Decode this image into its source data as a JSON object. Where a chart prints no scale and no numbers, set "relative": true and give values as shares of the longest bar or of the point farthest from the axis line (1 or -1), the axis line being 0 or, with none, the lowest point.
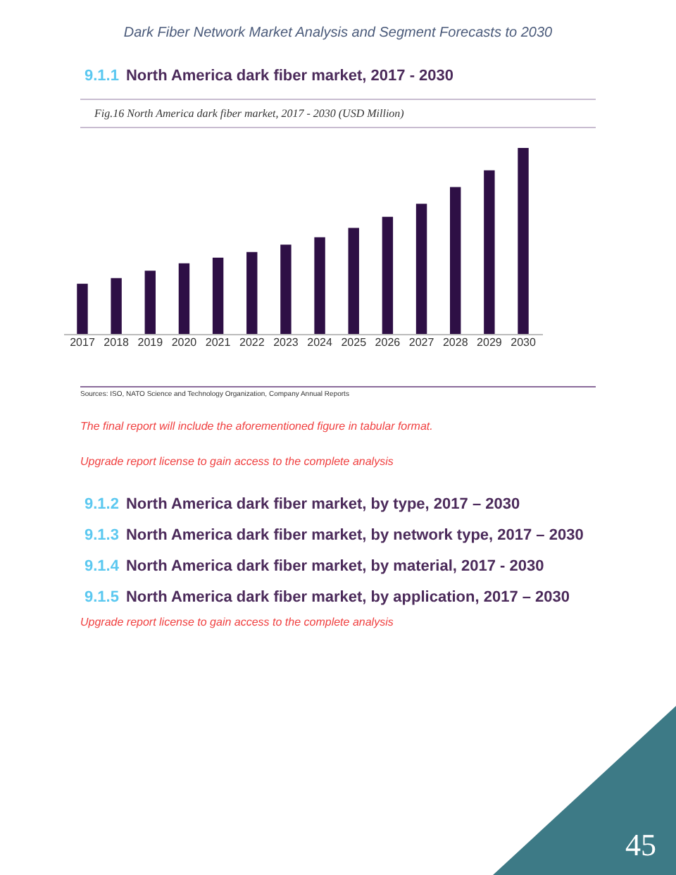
{
  "chart_data": {
    "type": "bar",
    "title": "Dark Fiber Network Market Analysis and Segment Forecasts to 2030",
    "subtitle": "9.1.1 North America dark fiber market, 2017 - 2030",
    "categories": [
      "2017",
      "2018",
      "2019",
      "2020",
      "2021",
      "2022",
      "2023",
      "2024",
      "2025",
      "2026",
      "2027",
      "2028",
      "2029",
      "2030"
    ],
    "values": [
      0.27,
      0.3,
      0.34,
      0.38,
      0.41,
      0.44,
      0.48,
      0.52,
      0.57,
      0.63,
      0.7,
      0.79,
      0.88,
      1
    ],
    "color": "#2e0f45",
    "relative": true,
    "annotations": [
      "Fig.16  North America dark fiber market, 2017 - 2030 (USD Million)",
      "Sources: ISO, NATO Science and Technology Organization, Company Annual Reports",
      "The final report will include the aforementioned figure in tabular format.",
      "Upgrade report license to gain access to the complete analysis",
      "9.1.2 North America dark fiber market, by type, 2017 – 2030",
      "9.1.3 North America dark fiber market, by network type, 2017 – 2030",
      "9.1.4 North America dark fiber market, by material, 2017 - 2030",
      "9.1.5 North America dark fiber market, by application, 2017 – 2030",
      "Upgrade report license to gain access to the complete analysis",
      "45"
    ]
  }
}
